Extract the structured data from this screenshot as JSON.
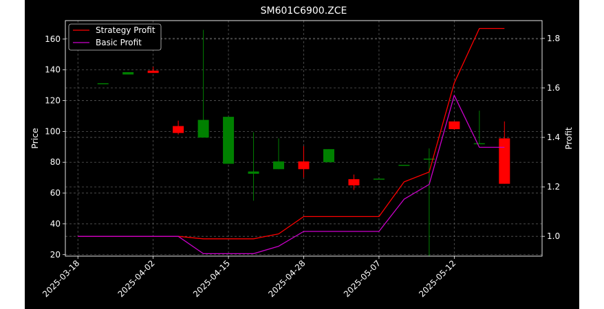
{
  "chart_data": {
    "type": "candlestick+line",
    "title": "SM601C6900.ZCE",
    "ylabel_left": "Price",
    "ylabel_right": "Profit",
    "ylim_left": [
      19,
      172
    ],
    "ylim_right": [
      0.92,
      1.872
    ],
    "yticks_left": [
      20,
      40,
      60,
      80,
      100,
      120,
      140,
      160
    ],
    "yticks_right": [
      1.0,
      1.2,
      1.4,
      1.6,
      1.8
    ],
    "xlim": [
      -0.5,
      18.5
    ],
    "xticks": [
      {
        "index": 0,
        "label": "2025-03-18"
      },
      {
        "index": 3,
        "label": "2025-04-02"
      },
      {
        "index": 6,
        "label": "2025-04-15"
      },
      {
        "index": 9,
        "label": "2025-04-28"
      },
      {
        "index": 12,
        "label": "2025-05-07"
      },
      {
        "index": 15,
        "label": "2025-05-12"
      }
    ],
    "grid": true,
    "legend_position": "upper-left",
    "up_color": "#008000",
    "down_color": "#ff0000",
    "candles": [
      {
        "index": 1,
        "open": 131,
        "close": 131,
        "high": 131,
        "low": 131
      },
      {
        "index": 2,
        "open": 137,
        "close": 138.5,
        "high": 138.5,
        "low": 137
      },
      {
        "index": 3,
        "open": 139.5,
        "close": 138,
        "high": 142,
        "low": 138
      },
      {
        "index": 4,
        "open": 103.5,
        "close": 99,
        "high": 107,
        "low": 98
      },
      {
        "index": 5,
        "open": 96,
        "close": 107.5,
        "high": 166,
        "low": 96
      },
      {
        "index": 6,
        "open": 79,
        "close": 109.5,
        "high": 109.5,
        "low": 79
      },
      {
        "index": 7,
        "open": 72.5,
        "close": 74,
        "high": 99.5,
        "low": 55
      },
      {
        "index": 8,
        "open": 75.5,
        "close": 80.5,
        "high": 95.5,
        "low": 75.5
      },
      {
        "index": 9,
        "open": 80.5,
        "close": 75.5,
        "high": 90.5,
        "low": 70
      },
      {
        "index": 10,
        "open": 80,
        "close": 88.5,
        "high": 88.5,
        "low": 80
      },
      {
        "index": 11,
        "open": 69,
        "close": 65,
        "high": 72,
        "low": 62
      },
      {
        "index": 12,
        "open": 69,
        "close": 69,
        "high": 69,
        "low": 69
      },
      {
        "index": 13,
        "open": 78,
        "close": 78,
        "high": 78,
        "low": 78
      },
      {
        "index": 14,
        "open": 82,
        "close": 82,
        "high": 89,
        "low": 19
      },
      {
        "index": 15,
        "open": 106.5,
        "close": 101.5,
        "high": 106.5,
        "low": 101
      },
      {
        "index": 16,
        "open": 92,
        "close": 92,
        "high": 113.5,
        "low": 92
      },
      {
        "index": 17,
        "open": 95.5,
        "close": 66,
        "high": 106.5,
        "low": 66
      }
    ],
    "series": [
      {
        "name": "Strategy Profit",
        "color": "#ff0000",
        "x": [
          0,
          1,
          2,
          3,
          4,
          5,
          6,
          7,
          8,
          9,
          10,
          11,
          12,
          13,
          14,
          15,
          16,
          17
        ],
        "values": [
          1.0,
          1.0,
          1.0,
          1.0,
          1.0,
          0.99,
          0.99,
          0.99,
          1.01,
          1.08,
          1.08,
          1.08,
          1.08,
          1.22,
          1.26,
          1.62,
          1.84,
          1.84
        ]
      },
      {
        "name": "Basic Profit",
        "color": "#cc00cc",
        "x": [
          0,
          1,
          2,
          3,
          4,
          5,
          6,
          7,
          8,
          9,
          10,
          11,
          12,
          13,
          14,
          15,
          16,
          17
        ],
        "values": [
          1.0,
          1.0,
          1.0,
          1.0,
          1.0,
          0.93,
          0.93,
          0.93,
          0.96,
          1.02,
          1.02,
          1.02,
          1.02,
          1.15,
          1.21,
          1.57,
          1.36,
          1.36
        ]
      }
    ]
  }
}
